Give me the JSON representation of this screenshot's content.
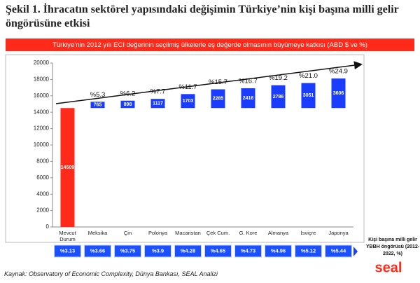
{
  "chart_data": {
    "type": "waterfall",
    "title": "Şekil 1. İhracatın sektörel yapısındaki değişimin Türkiye’nin kişi başına milli gelir öngörüsüne etkisi",
    "subtitle": "Türkiye’nin 2012 yılı ECI değerinin seçilmiş ülkelerle eş değerde olmasının büyümeye katkısı (ABD $ ve %)",
    "categories": [
      "Mevcut Durum",
      "Meksika",
      "Çin",
      "Polonya",
      "Macaristan",
      "Çek Cum.",
      "G. Kore",
      "Almanya",
      "İsviçre",
      "Japonya"
    ],
    "values": [
      14509,
      765,
      898,
      1117,
      1703,
      2285,
      2416,
      2786,
      3051,
      3606
    ],
    "colors": [
      "#ff2a1a",
      "#1a3cff"
    ],
    "increase_labels": [
      null,
      "%5.3",
      "%6.2",
      "%7.7",
      "%11.7",
      "%15.7",
      "%16.7",
      "%19.2",
      "%21.0",
      "%24.9"
    ],
    "forecast_labels": [
      "%3.13",
      "%3.66",
      "%3.75",
      "%3.9",
      "%4.28",
      "%4.65",
      "%4.73",
      "%4.96",
      "%5.12",
      "%5.44"
    ],
    "forecast_title": "Kişi başına milli gelir YBBH öngörüsü (2012-2022, %)",
    "ylim": [
      0,
      20000
    ],
    "yticks": [
      0,
      2000,
      4000,
      6000,
      8000,
      10000,
      12000,
      14000,
      16000,
      18000,
      20000
    ],
    "source": "Kaynak: Observatory of Economic Complexity, Dünya Bankası, SEAL Analizi",
    "logo": "seal"
  }
}
